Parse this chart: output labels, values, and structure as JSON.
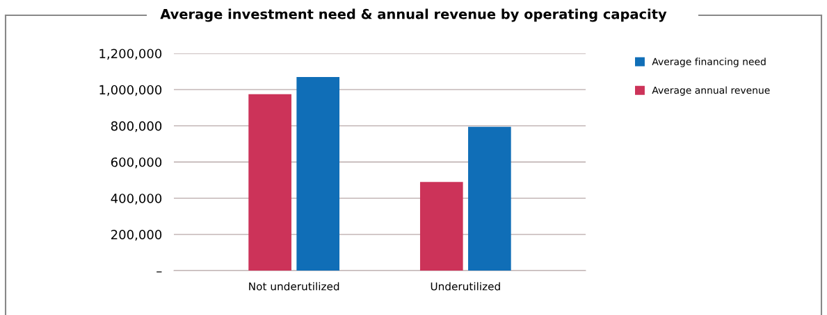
{
  "chart_data": {
    "type": "bar",
    "title": "Average investment need & annual revenue by operating capacity",
    "categories": [
      "Not underutilized",
      "Underutilized"
    ],
    "series": [
      {
        "name": "Average annual revenue",
        "color": "#cc3359",
        "values": [
          975000,
          490000
        ]
      },
      {
        "name": "Average financing need",
        "color": "#106eb7",
        "values": [
          1070000,
          795000
        ]
      }
    ],
    "ylim": [
      0,
      1200000
    ],
    "yticks": [
      {
        "value": 0,
        "label": "–"
      },
      {
        "value": 200000,
        "label": "200,000"
      },
      {
        "value": 400000,
        "label": "400,000"
      },
      {
        "value": 600000,
        "label": "600,000"
      },
      {
        "value": 800000,
        "label": "800,000"
      },
      {
        "value": 1000000,
        "label": "1,000,000"
      },
      {
        "value": 1200000,
        "label": "1,200,000"
      }
    ],
    "grid": "y",
    "legend": "top right"
  }
}
